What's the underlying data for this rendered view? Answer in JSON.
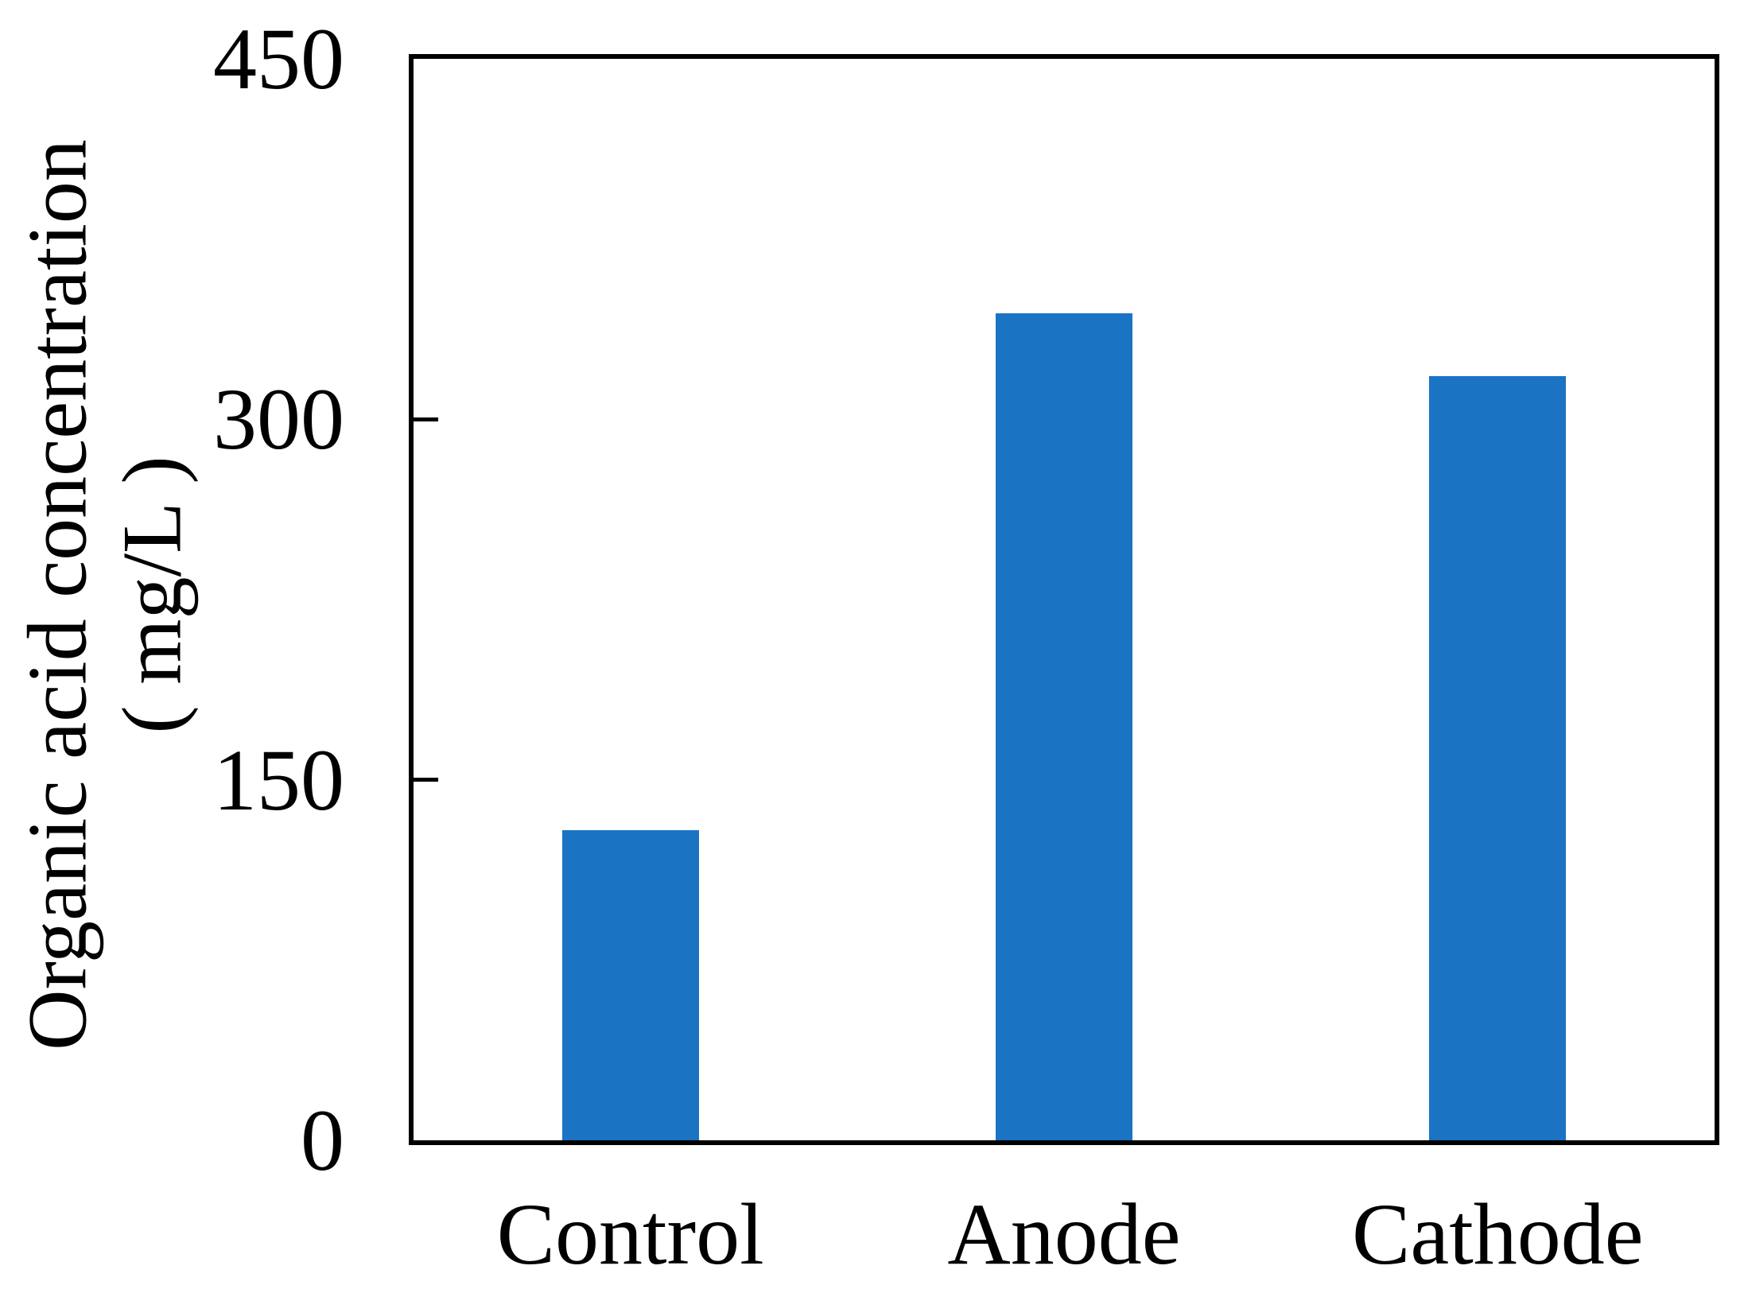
{
  "chart_data": {
    "type": "bar",
    "title": "",
    "categories": [
      "Control",
      "Anode",
      "Cathode"
    ],
    "values": [
      129,
      344,
      318
    ],
    "ylabel_line1": "Organic acid concentration",
    "ylabel_line2": "( mg/L )",
    "xlabel": "",
    "ylim": [
      0,
      450
    ],
    "yticks": [
      0,
      150,
      300,
      450
    ],
    "grid": false,
    "legend": "none",
    "bar_color": "#1b73c4",
    "axis_color": "#000000",
    "background_color": "#ffffff"
  }
}
